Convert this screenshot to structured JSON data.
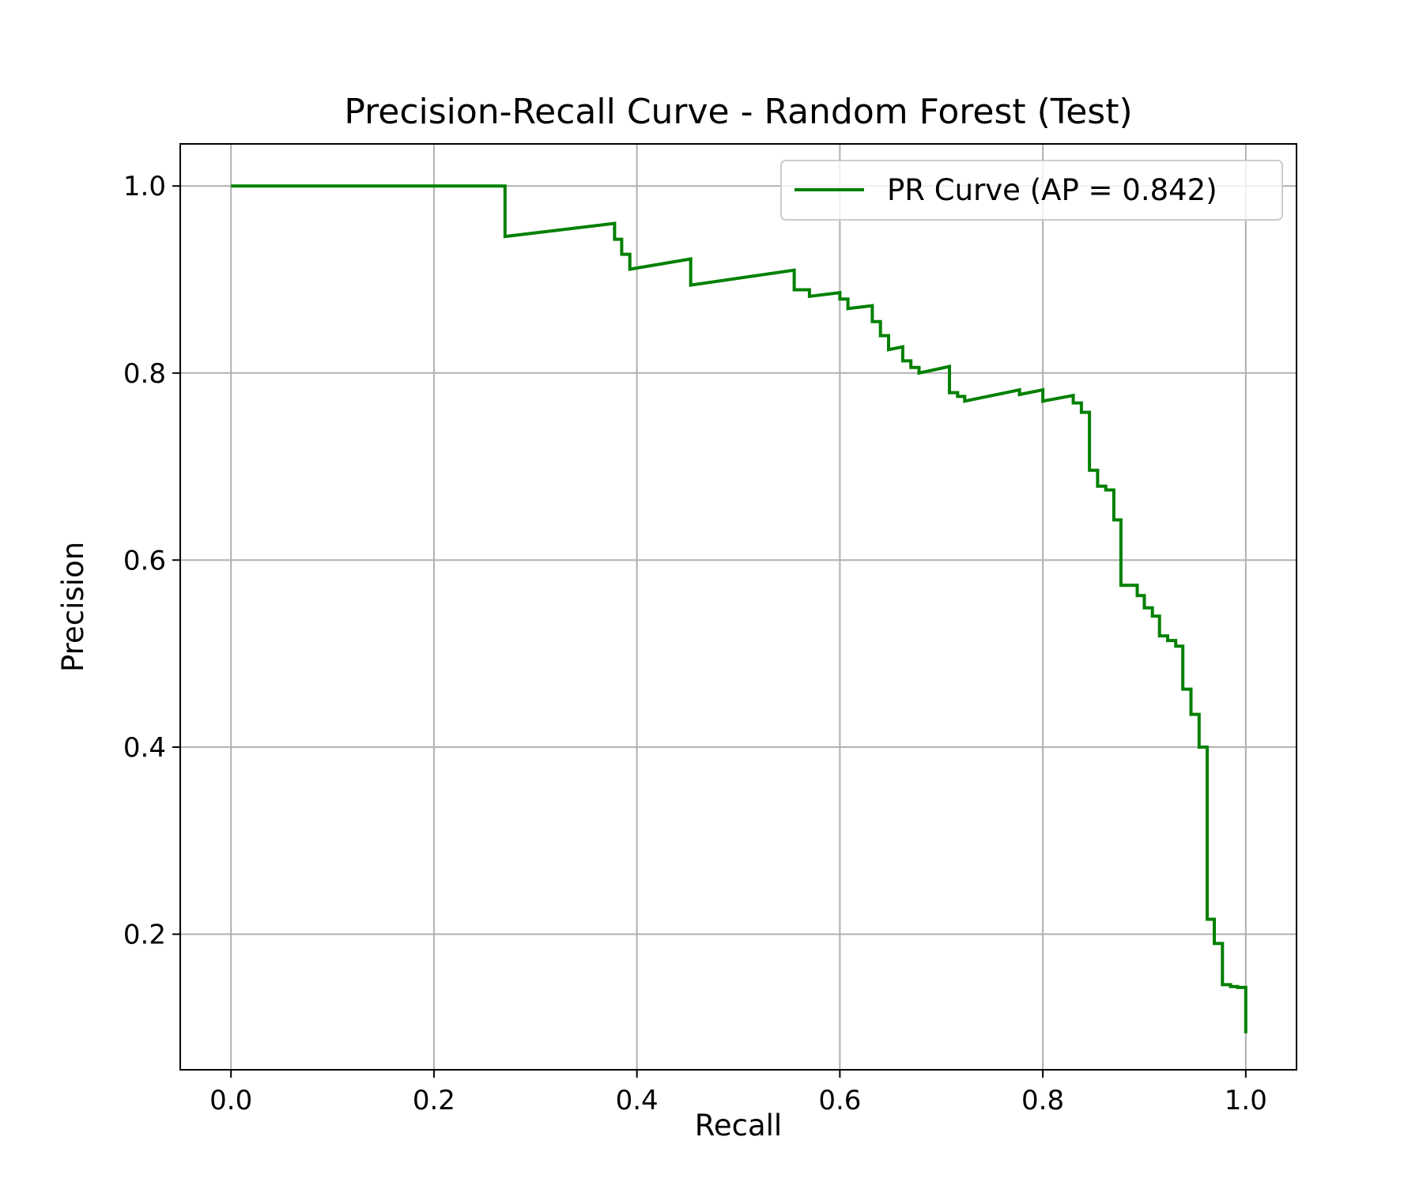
{
  "chart_data": {
    "type": "line",
    "title": "Precision-Recall Curve - Random Forest (Test)",
    "xlabel": "Recall",
    "ylabel": "Precision",
    "xlim": [
      -0.05,
      1.05
    ],
    "ylim": [
      0.055,
      1.045
    ],
    "xticks": [
      "0.0",
      "0.2",
      "0.4",
      "0.6",
      "0.8",
      "1.0"
    ],
    "yticks": [
      "0.2",
      "0.4",
      "0.6",
      "0.8",
      "1.0"
    ],
    "grid": true,
    "legend_position": "top-right",
    "series": [
      {
        "name": "PR Curve (AP = 0.842)",
        "color": "#008000",
        "step": true,
        "x": [
          0.0,
          0.27,
          0.27,
          0.378,
          0.378,
          0.385,
          0.385,
          0.393,
          0.393,
          0.453,
          0.453,
          0.555,
          0.555,
          0.57,
          0.57,
          0.6,
          0.6,
          0.608,
          0.608,
          0.632,
          0.632,
          0.64,
          0.64,
          0.648,
          0.648,
          0.662,
          0.662,
          0.67,
          0.67,
          0.678,
          0.678,
          0.708,
          0.708,
          0.716,
          0.716,
          0.723,
          0.723,
          0.777,
          0.777,
          0.8,
          0.8,
          0.83,
          0.83,
          0.838,
          0.838,
          0.846,
          0.846,
          0.854,
          0.854,
          0.862,
          0.862,
          0.87,
          0.87,
          0.877,
          0.877,
          0.885,
          0.885,
          0.893,
          0.893,
          0.9,
          0.9,
          0.908,
          0.908,
          0.915,
          0.915,
          0.923,
          0.923,
          0.931,
          0.931,
          0.938,
          0.938,
          0.946,
          0.946,
          0.954,
          0.954,
          0.962,
          0.962,
          0.969,
          0.969,
          0.977,
          0.977,
          0.985,
          0.985,
          0.992,
          0.992,
          1.0,
          1.0
        ],
        "y": [
          1.0,
          1.0,
          0.946,
          0.96,
          0.943,
          0.943,
          0.927,
          0.927,
          0.911,
          0.922,
          0.894,
          0.91,
          0.889,
          0.889,
          0.882,
          0.886,
          0.879,
          0.879,
          0.869,
          0.872,
          0.855,
          0.855,
          0.84,
          0.84,
          0.825,
          0.828,
          0.813,
          0.813,
          0.806,
          0.806,
          0.8,
          0.807,
          0.779,
          0.779,
          0.775,
          0.775,
          0.77,
          0.782,
          0.777,
          0.782,
          0.77,
          0.776,
          0.768,
          0.768,
          0.758,
          0.758,
          0.696,
          0.696,
          0.679,
          0.679,
          0.675,
          0.675,
          0.643,
          0.643,
          0.573,
          0.573,
          0.573,
          0.573,
          0.562,
          0.562,
          0.549,
          0.549,
          0.54,
          0.54,
          0.519,
          0.519,
          0.514,
          0.514,
          0.508,
          0.508,
          0.462,
          0.462,
          0.435,
          0.435,
          0.4,
          0.4,
          0.216,
          0.216,
          0.19,
          0.19,
          0.146,
          0.146,
          0.144,
          0.144,
          0.143,
          0.143,
          0.094
        ]
      }
    ]
  }
}
